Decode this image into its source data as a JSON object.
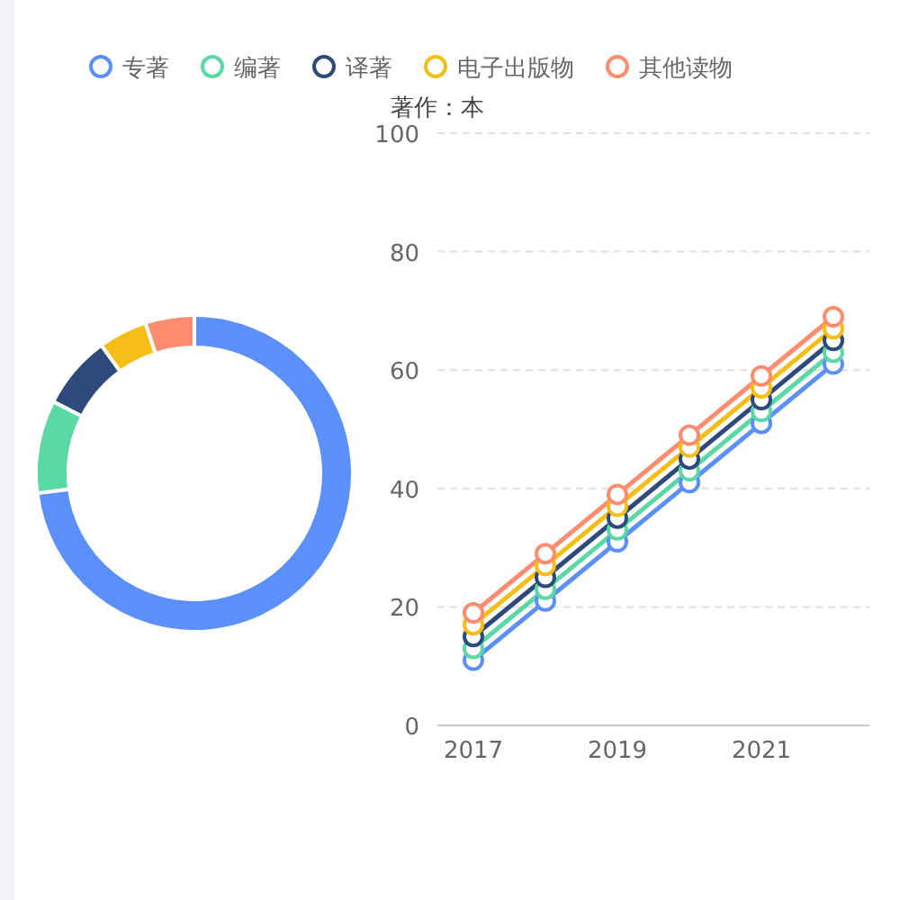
{
  "chart_data": [
    {
      "type": "donut",
      "categories": [
        "专著",
        "编著",
        "译著",
        "电子出版物",
        "其他读物"
      ],
      "values": [
        73,
        9.5,
        7.5,
        5,
        5
      ],
      "colors": [
        "#5b8ff9",
        "#5ad8a6",
        "#2e4a7d",
        "#f6bd16",
        "#ff8c6e"
      ],
      "legend": "top"
    },
    {
      "type": "line",
      "ylabel": "著作：本",
      "categories": [
        "2017",
        null,
        "2019",
        null,
        "2021",
        null
      ],
      "series": [
        {
          "color": "#5b8ff9",
          "values": [
            11,
            21,
            31,
            41,
            51,
            61
          ]
        },
        {
          "color": "#5ad8a6",
          "values": [
            13,
            23,
            33,
            43,
            53,
            63
          ]
        },
        {
          "color": "#2e4a7d",
          "values": [
            15,
            25,
            35,
            45,
            55,
            65
          ]
        },
        {
          "color": "#f6bd16",
          "values": [
            17,
            27,
            37,
            47,
            57,
            67
          ]
        },
        {
          "color": "#ff8c6e",
          "values": [
            19,
            29,
            39,
            49,
            59,
            69
          ]
        }
      ],
      "ylim": [
        0,
        100
      ],
      "yticks": [
        0,
        20,
        40,
        60,
        80,
        100
      ],
      "grid": "y",
      "marker": "circle",
      "line_style": "solid"
    }
  ]
}
